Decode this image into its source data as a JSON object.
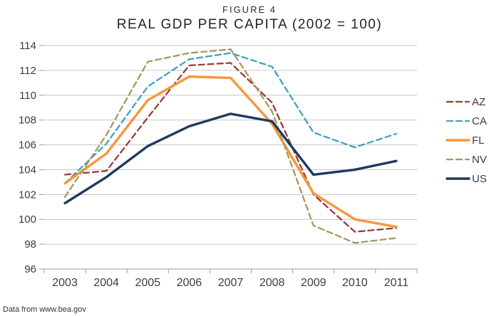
{
  "figure": {
    "label": "FIGURE 4",
    "title": "REAL GDP PER CAPITA (2002 = 100)"
  },
  "footer": {
    "source": "Data from www.bea.gov"
  },
  "colors": {
    "gridline": "#c6c6c6",
    "axis": "#9a9a9a",
    "tick_label": "#3d3d3d"
  },
  "chart_data": {
    "type": "line",
    "title": "REAL GDP PER CAPITA (2002 = 100)",
    "xlabel": "",
    "ylabel": "",
    "categories": [
      "2003",
      "2004",
      "2005",
      "2006",
      "2007",
      "2008",
      "2009",
      "2010",
      "2011"
    ],
    "series": [
      {
        "name": "AZ",
        "color": "#9c3a37",
        "dashed": true,
        "width": 2.3,
        "values": [
          103.6,
          103.9,
          108.2,
          112.4,
          112.6,
          109.4,
          102.0,
          99.0,
          99.3
        ]
      },
      {
        "name": "CA",
        "color": "#41a0c2",
        "dashed": true,
        "width": 2.3,
        "values": [
          102.9,
          106.1,
          110.7,
          112.9,
          113.4,
          112.3,
          107.0,
          105.8,
          106.9
        ]
      },
      {
        "name": "FL",
        "color": "#f8963c",
        "dashed": false,
        "width": 3.4,
        "values": [
          102.9,
          105.3,
          109.6,
          111.5,
          111.4,
          107.7,
          102.1,
          100.0,
          99.4
        ]
      },
      {
        "name": "NV",
        "color": "#a49a5a",
        "dashed": true,
        "width": 2.3,
        "values": [
          101.8,
          106.8,
          112.7,
          113.4,
          113.7,
          108.7,
          99.5,
          98.1,
          98.5
        ]
      },
      {
        "name": "US",
        "color": "#1e3a5f",
        "dashed": false,
        "width": 3.4,
        "values": [
          101.3,
          103.4,
          105.9,
          107.5,
          108.5,
          107.9,
          103.6,
          104.0,
          104.7
        ]
      }
    ],
    "ylim": [
      96,
      114
    ],
    "ytick_step": 2,
    "grid": true,
    "legend_position": "right"
  }
}
